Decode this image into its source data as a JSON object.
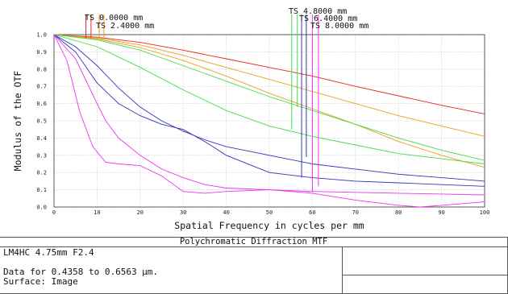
{
  "chart_data": {
    "type": "line",
    "title": "Polychromatic Diffraction MTF",
    "xlabel": "Spatial Frequency in cycles per mm",
    "ylabel": "Modulus of the OTF",
    "xlim": [
      0,
      100
    ],
    "ylim": [
      0.0,
      1.0
    ],
    "x_ticks": [
      "0",
      "10",
      "20",
      "30",
      "40",
      "50",
      "60",
      "70",
      "80",
      "90",
      "100"
    ],
    "y_ticks": [
      "0.0",
      "0.1",
      "0.2",
      "0.3",
      "0.4",
      "0.5",
      "0.6",
      "0.7",
      "0.8",
      "0.9",
      "1.0"
    ],
    "grid": true,
    "field_labels": [
      {
        "text": "TS 0.0000 mm",
        "color": "#ee2222"
      },
      {
        "text": "TS 2.4000 mm",
        "color": "#e8a020"
      },
      {
        "text": "TS 4.8000 mm",
        "color": "#44dd44"
      },
      {
        "text": "TS 6.4000 mm",
        "color": "#3333bb"
      },
      {
        "text": "TS 8.0000 mm",
        "color": "#ee33ee"
      }
    ],
    "markers": [
      {
        "x": 7.4,
        "y_bottom": 0.98,
        "color": "#ee2222"
      },
      {
        "x": 8.6,
        "y_bottom": 0.98,
        "color": "#ee2222"
      },
      {
        "x": 10.5,
        "y_bottom": 0.98,
        "color": "#e8a020"
      },
      {
        "x": 11.6,
        "y_bottom": 0.98,
        "color": "#e8a020"
      },
      {
        "x": 55.2,
        "y_bottom": 0.45,
        "color": "#44dd44"
      },
      {
        "x": 56.5,
        "y_bottom": 0.58,
        "color": "#44dd44"
      },
      {
        "x": 57.5,
        "y_bottom": 0.17,
        "color": "#3333bb"
      },
      {
        "x": 58.6,
        "y_bottom": 0.29,
        "color": "#3333bb"
      },
      {
        "x": 60.0,
        "y_bottom": 0.09,
        "color": "#ee33ee"
      },
      {
        "x": 61.4,
        "y_bottom": 0.12,
        "color": "#ee33ee"
      }
    ],
    "series": [
      {
        "color": "#ee2222",
        "x": [
          0,
          10,
          20,
          30,
          40,
          50,
          60,
          70,
          80,
          90,
          100
        ],
        "values": [
          1.0,
          0.985,
          0.955,
          0.91,
          0.86,
          0.81,
          0.76,
          0.7,
          0.645,
          0.59,
          0.54
        ]
      },
      {
        "color": "#e8a020",
        "x": [
          0,
          10,
          20,
          30,
          40,
          50,
          60,
          70,
          80,
          90,
          100
        ],
        "values": [
          1.0,
          0.98,
          0.94,
          0.88,
          0.81,
          0.74,
          0.67,
          0.6,
          0.53,
          0.47,
          0.41
        ]
      },
      {
        "color": "#e8a020",
        "x": [
          0,
          10,
          20,
          30,
          40,
          50,
          60,
          70,
          80,
          90,
          100
        ],
        "values": [
          1.0,
          0.975,
          0.925,
          0.85,
          0.76,
          0.66,
          0.57,
          0.48,
          0.38,
          0.3,
          0.23
        ]
      },
      {
        "color": "#44dd44",
        "x": [
          0,
          10,
          20,
          30,
          40,
          50,
          60,
          70,
          80,
          90,
          100
        ],
        "values": [
          1.0,
          0.97,
          0.91,
          0.82,
          0.73,
          0.64,
          0.56,
          0.48,
          0.4,
          0.33,
          0.27
        ]
      },
      {
        "color": "#44dd44",
        "x": [
          0,
          10,
          20,
          30,
          40,
          50,
          60,
          70,
          80,
          90,
          100
        ],
        "values": [
          1.0,
          0.93,
          0.81,
          0.68,
          0.56,
          0.47,
          0.41,
          0.36,
          0.31,
          0.28,
          0.25
        ]
      },
      {
        "color": "#3333bb",
        "x": [
          0,
          5,
          10,
          15,
          20,
          25,
          30,
          35,
          40,
          50,
          60,
          70,
          80,
          90,
          100
        ],
        "values": [
          1.0,
          0.93,
          0.82,
          0.69,
          0.58,
          0.5,
          0.44,
          0.39,
          0.35,
          0.3,
          0.25,
          0.22,
          0.19,
          0.17,
          0.15
        ]
      },
      {
        "color": "#3333bb",
        "x": [
          0,
          5,
          10,
          15,
          20,
          25,
          30,
          35,
          40,
          50,
          60,
          70,
          80,
          90,
          100
        ],
        "values": [
          1.0,
          0.9,
          0.72,
          0.6,
          0.53,
          0.48,
          0.45,
          0.38,
          0.3,
          0.2,
          0.17,
          0.15,
          0.14,
          0.13,
          0.12
        ]
      },
      {
        "color": "#ee33ee",
        "x": [
          0,
          5,
          10,
          12,
          15,
          20,
          25,
          30,
          35,
          40,
          50,
          60,
          70,
          80,
          90,
          100
        ],
        "values": [
          1.0,
          0.86,
          0.6,
          0.5,
          0.4,
          0.3,
          0.22,
          0.17,
          0.13,
          0.11,
          0.1,
          0.09,
          0.085,
          0.08,
          0.075,
          0.07
        ]
      },
      {
        "color": "#ee33ee",
        "x": [
          0,
          3,
          6,
          9,
          12,
          15,
          20,
          25,
          30,
          35,
          40,
          50,
          60,
          70,
          80,
          85,
          90,
          100
        ],
        "values": [
          1.0,
          0.85,
          0.55,
          0.35,
          0.26,
          0.25,
          0.24,
          0.18,
          0.09,
          0.08,
          0.09,
          0.1,
          0.08,
          0.04,
          0.01,
          0.0,
          0.01,
          0.03
        ]
      }
    ]
  },
  "info": {
    "title": "Polychromatic Diffraction MTF",
    "lens": "LM4HC 4.75mm F2.4",
    "data_line": "Data for 0.4358 to 0.6563 μm.",
    "surface_line": "Surface: Image"
  }
}
